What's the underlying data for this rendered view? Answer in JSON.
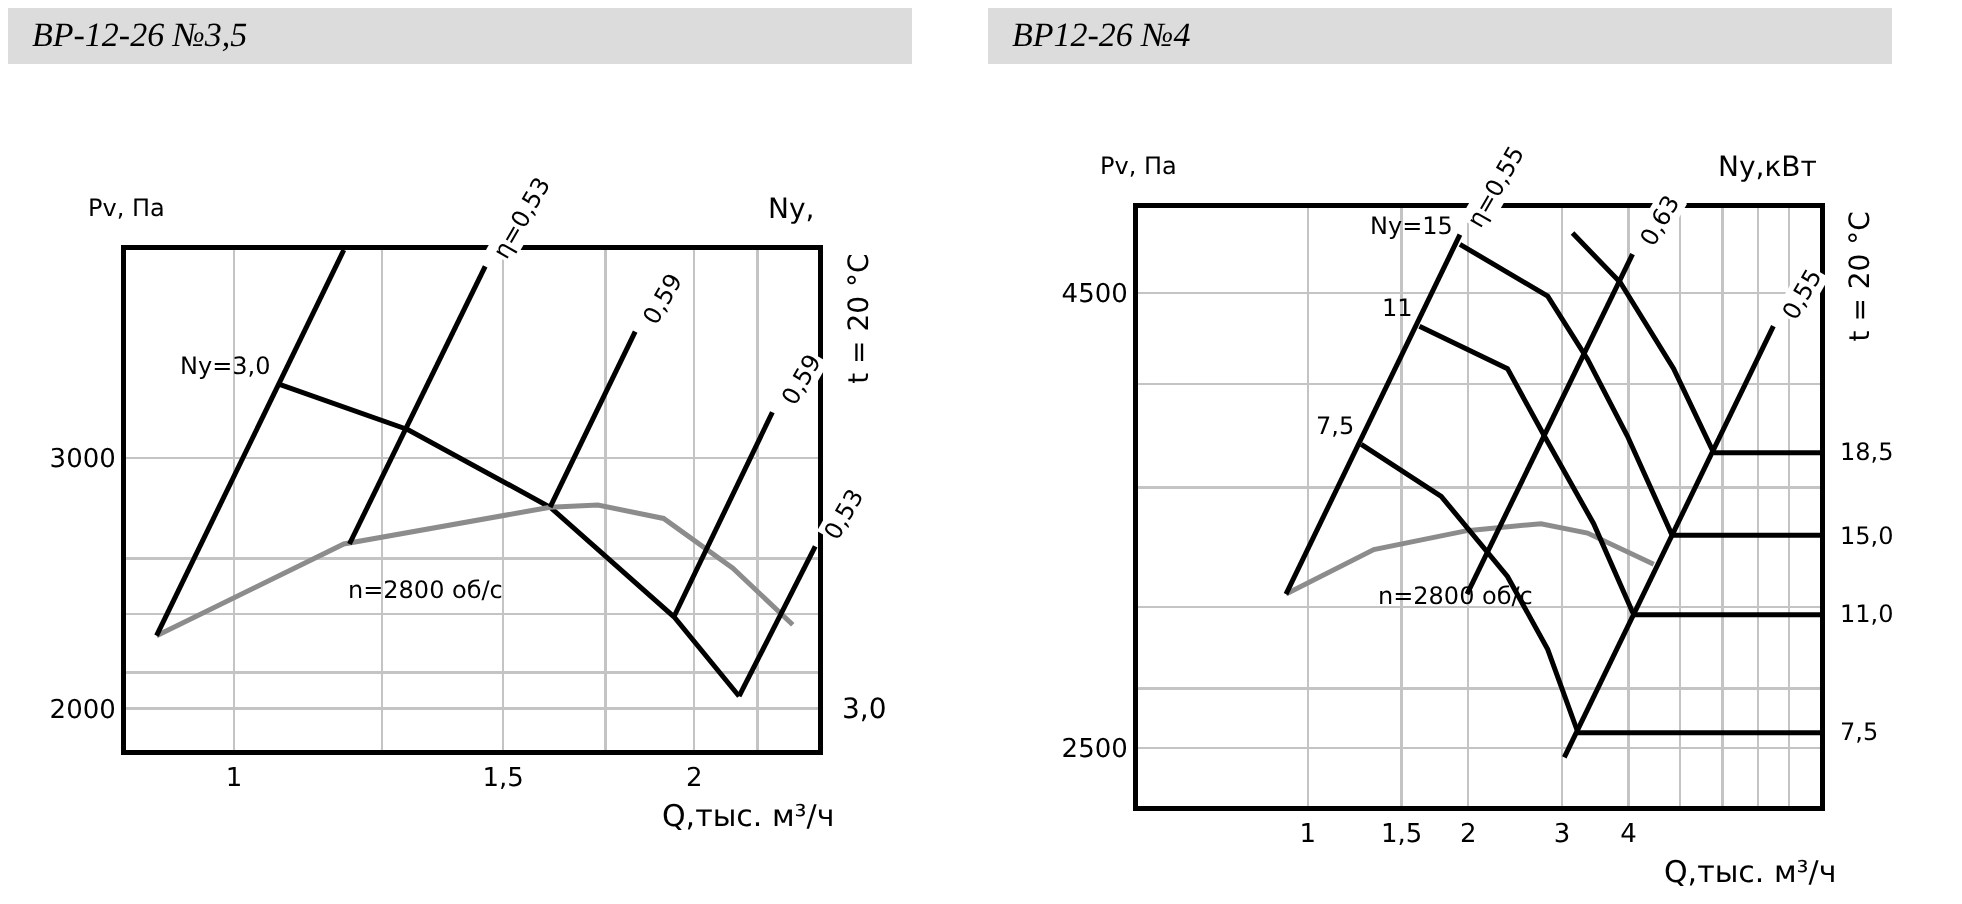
{
  "chart_data": [
    {
      "type": "line",
      "title": "ВР-12-26 №3,5",
      "xlabel": "Q,тыс. м³/ч",
      "ylabel": "Pv, Па",
      "y2label": "Ny,",
      "log": "xy",
      "grid": true,
      "legend": false,
      "marker": "none",
      "line_style": "solid",
      "xlim": [
        0.85,
        2.41
      ],
      "ylim": [
        1870,
        4200
      ],
      "xticks": [
        1,
        {
          "value": 1.25,
          "label": null
        },
        {
          "value": 1.5,
          "label": "1,5"
        },
        {
          "value": 1.75,
          "label": null
        },
        2,
        {
          "value": 2.2,
          "label": null
        }
      ],
      "yticks": [
        2000,
        {
          "value": 2120,
          "label": null
        },
        {
          "value": 2330,
          "label": null
        },
        {
          "value": 2550,
          "label": null
        },
        3000
      ],
      "series": [
        {
          "color": "#000000",
          "x": [
            1.07,
            1.3,
            1.61,
            1.94,
            2.14
          ],
          "values": [
            3380,
            3140,
            2770,
            2320,
            2040
          ]
        },
        {
          "color": "#8c8c8c",
          "x": [
            0.89,
            1.18,
            1.61,
            1.73,
            1.91,
            2.12,
            2.32
          ],
          "values": [
            2250,
            2610,
            2770,
            2780,
            2720,
            2510,
            2290
          ]
        },
        {
          "color": "#000000",
          "x": [
            0.89,
            1.18
          ],
          "values": [
            2250,
            4200
          ]
        },
        {
          "color": "#000000",
          "x": [
            1.19,
            1.46
          ],
          "values": [
            2610,
            4090
          ]
        },
        {
          "color": "#000000",
          "x": [
            1.61,
            1.83
          ],
          "values": [
            2770,
            3680
          ]
        },
        {
          "color": "#000000",
          "x": [
            1.94,
            2.25
          ],
          "values": [
            2320,
            3230
          ]
        },
        {
          "color": "#000000",
          "x": [
            2.14,
            2.4
          ],
          "values": [
            2040,
            2600
          ]
        }
      ],
      "annotations": [
        {
          "text": "Ny=3,0",
          "x": 1.07,
          "y": 3380
        },
        {
          "text": "η=0,53",
          "x": 1.46,
          "y": 4090
        },
        {
          "text": "0,59",
          "x": 1.83,
          "y": 3680
        },
        {
          "text": "0,59",
          "x": 2.25,
          "y": 3230
        },
        {
          "text": "0,53",
          "x": 2.4,
          "y": 2600
        },
        {
          "text": "n=2800 об/с",
          "x": 1.18,
          "y": 2610
        },
        "t = 20 °C",
        "3,0"
      ]
    },
    {
      "type": "line",
      "title": "ВР12-26 №4",
      "xlabel": "Q,тыс. м³/ч",
      "ylabel": "Pv, Па",
      "y2label": "Ny,кВт",
      "log": "xy",
      "grid": true,
      "legend": false,
      "marker": "none",
      "line_style": "solid",
      "xlim": [
        0.48,
        9.15
      ],
      "ylim": [
        2320,
        5020
      ],
      "xticks": [
        1,
        {
          "value": 1.5,
          "label": "1,5"
        },
        2,
        3,
        4,
        {
          "value": 5,
          "label": null
        },
        {
          "value": 6,
          "label": null
        },
        {
          "value": 7,
          "label": null
        },
        {
          "value": 8,
          "label": null
        }
      ],
      "yticks": [
        2500,
        {
          "value": 2700,
          "label": null
        },
        {
          "value": 3000,
          "label": null
        },
        {
          "value": 3500,
          "label": null
        },
        {
          "value": 4000,
          "label": null
        },
        4500
      ],
      "series": [
        {
          "color": "#8c8c8c",
          "x": [
            0.91,
            1.33,
            1.99,
            2.74,
            3.35,
            4.46
          ],
          "values": [
            3050,
            3230,
            3310,
            3340,
            3300,
            3170
          ]
        },
        {
          "color": "#000000",
          "x": [
            0.91,
            1.93
          ],
          "values": [
            3050,
            4850
          ]
        },
        {
          "color": "#000000",
          "x": [
            1.26,
            1.78,
            2.37,
            2.82,
            3.2
          ],
          "values": [
            3700,
            3460,
            3120,
            2840,
            2560
          ]
        },
        {
          "color": "#000000",
          "x": [
            1.62,
            2.37,
            2.78,
            3.44,
            4.09
          ],
          "values": [
            4310,
            4080,
            3740,
            3340,
            2970
          ]
        },
        {
          "color": "#000000",
          "x": [
            1.93,
            2.82,
            3.35,
            3.98,
            4.83
          ],
          "values": [
            4790,
            4480,
            4130,
            3740,
            3290
          ]
        },
        {
          "color": "#000000",
          "x": [
            3.14,
            3.86,
            4.86,
            5.78
          ],
          "values": [
            4860,
            4560,
            4080,
            3660
          ]
        },
        {
          "color": "#000000",
          "x": [
            1.99,
            4.07
          ],
          "values": [
            3050,
            4730
          ]
        },
        {
          "color": "#000000",
          "x": [
            3.03,
            7.48
          ],
          "values": [
            2470,
            4310
          ]
        },
        {
          "name": "7,5",
          "color": "#000000",
          "x": [
            3.2,
            9.15
          ],
          "values": [
            2550,
            2550
          ]
        },
        {
          "name": "11,0",
          "color": "#000000",
          "x": [
            4.09,
            9.15
          ],
          "values": [
            2970,
            2970
          ]
        },
        {
          "name": "15,0",
          "color": "#000000",
          "x": [
            4.83,
            9.15
          ],
          "values": [
            3290,
            3290
          ]
        },
        {
          "name": "18,5",
          "color": "#000000",
          "x": [
            5.78,
            9.15
          ],
          "values": [
            3660,
            3660
          ]
        }
      ],
      "annotations": [
        {
          "text": "Ny=15",
          "x": 1.93,
          "y": 4790
        },
        {
          "text": "11",
          "x": 1.62,
          "y": 4310
        },
        {
          "text": "7,5",
          "x": 1.26,
          "y": 3700
        },
        {
          "text": "η=0,55",
          "x": 1.93,
          "y": 4850
        },
        {
          "text": "0,63",
          "x": 4.07,
          "y": 4730
        },
        {
          "text": "0,55",
          "x": 7.48,
          "y": 4310
        },
        {
          "text": "n=2800 об/с",
          "x": 1.33,
          "y": 3230
        },
        "t = 20 °C"
      ]
    }
  ]
}
